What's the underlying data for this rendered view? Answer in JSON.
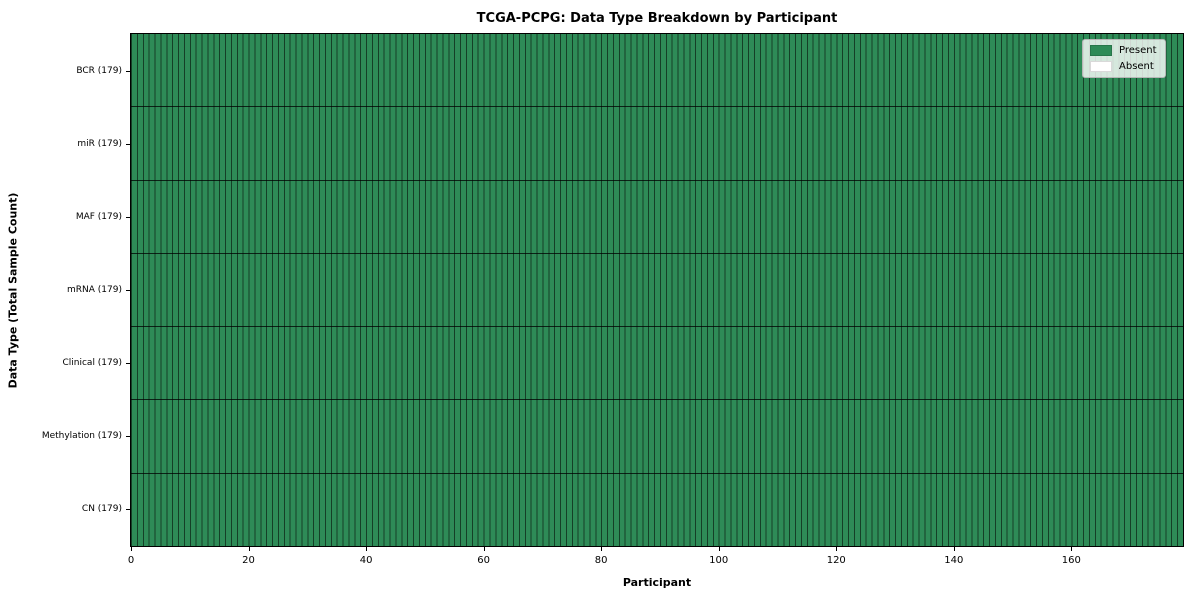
{
  "chart_data": {
    "type": "heatmap",
    "title": "TCGA-PCPG: Data Type Breakdown by Participant",
    "xlabel": "Participant",
    "ylabel": "Data Type (Total Sample Count)",
    "participants": 179,
    "x_ticks": [
      0,
      20,
      40,
      60,
      80,
      100,
      120,
      140,
      160
    ],
    "x_range": [
      0,
      179
    ],
    "rows": [
      {
        "label": "BCR (179)",
        "name": "BCR",
        "total_samples": 179,
        "present_count": 179,
        "absent_count": 0
      },
      {
        "label": "miR (179)",
        "name": "miR",
        "total_samples": 179,
        "present_count": 179,
        "absent_count": 0
      },
      {
        "label": "MAF (179)",
        "name": "MAF",
        "total_samples": 179,
        "present_count": 179,
        "absent_count": 0
      },
      {
        "label": "mRNA (179)",
        "name": "mRNA",
        "total_samples": 179,
        "present_count": 179,
        "absent_count": 0
      },
      {
        "label": "Clinical (179)",
        "name": "Clinical",
        "total_samples": 179,
        "present_count": 179,
        "absent_count": 0
      },
      {
        "label": "Methylation (179)",
        "name": "Methylation",
        "total_samples": 179,
        "present_count": 179,
        "absent_count": 0
      },
      {
        "label": "CN (179)",
        "name": "CN",
        "total_samples": 179,
        "present_count": 179,
        "absent_count": 0
      }
    ],
    "legend": [
      {
        "label": "Present",
        "color": "#2e8b57"
      },
      {
        "label": "Absent",
        "color": "#ffffff"
      }
    ],
    "colors": {
      "present": "#2e8b57",
      "absent": "#ffffff",
      "cell_edge": "rgba(0,0,0,0.55)",
      "row_divider": "rgba(0,0,0,0.75)",
      "axes_edge": "#000000"
    },
    "grid": "cell-edges",
    "legend_position": "upper-right"
  }
}
